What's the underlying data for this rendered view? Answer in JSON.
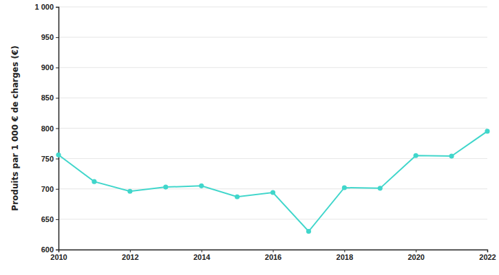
{
  "chart_data": {
    "type": "line",
    "y_label": "Produits par 1 000 € de charges (€)",
    "x": [
      2010,
      2011,
      2012,
      2013,
      2014,
      2015,
      2016,
      2017,
      2018,
      2019,
      2020,
      2021,
      2022
    ],
    "values": [
      756,
      712,
      696,
      703,
      705,
      687,
      694,
      630,
      702,
      701,
      755,
      754,
      795
    ],
    "color": "#40d6cb",
    "marker": "circle",
    "xlim": [
      2010,
      2022
    ],
    "xticks": [
      2010,
      2012,
      2014,
      2016,
      2018,
      2020,
      2022
    ],
    "ylim": [
      600,
      1000
    ],
    "yticks": [
      600,
      650,
      700,
      750,
      800,
      850,
      900,
      950,
      {
        "value": 1000,
        "label": "1 000"
      }
    ],
    "grid": true
  }
}
